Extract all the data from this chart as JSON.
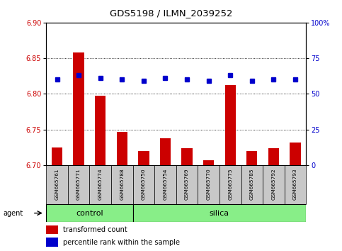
{
  "title": "GDS5198 / ILMN_2039252",
  "samples": [
    "GSM665761",
    "GSM665771",
    "GSM665774",
    "GSM665788",
    "GSM665750",
    "GSM665754",
    "GSM665769",
    "GSM665770",
    "GSM665775",
    "GSM665785",
    "GSM665792",
    "GSM665793"
  ],
  "red_values": [
    6.725,
    6.858,
    6.797,
    6.747,
    6.72,
    6.738,
    6.724,
    6.707,
    6.812,
    6.72,
    6.724,
    6.732
  ],
  "blue_values": [
    60,
    63,
    61,
    60,
    59,
    61,
    60,
    59,
    63,
    59,
    60,
    60
  ],
  "ylim_left": [
    6.7,
    6.9
  ],
  "ylim_right": [
    0,
    100
  ],
  "yticks_left": [
    6.7,
    6.75,
    6.8,
    6.85,
    6.9
  ],
  "yticks_right": [
    0,
    25,
    50,
    75,
    100
  ],
  "ytick_labels_right": [
    "0",
    "25",
    "50",
    "75",
    "100%"
  ],
  "bar_color": "#cc0000",
  "dot_color": "#0000cc",
  "background_plot": "#ffffff",
  "background_xtick": "#c8c8c8",
  "control_color": "#88ee88",
  "silica_color": "#88ee88",
  "agent_label": "agent",
  "control_label": "control",
  "silica_label": "silica",
  "legend_red": "transformed count",
  "legend_blue": "percentile rank within the sample",
  "bar_width": 0.5,
  "n_control": 4,
  "n_silica": 8
}
